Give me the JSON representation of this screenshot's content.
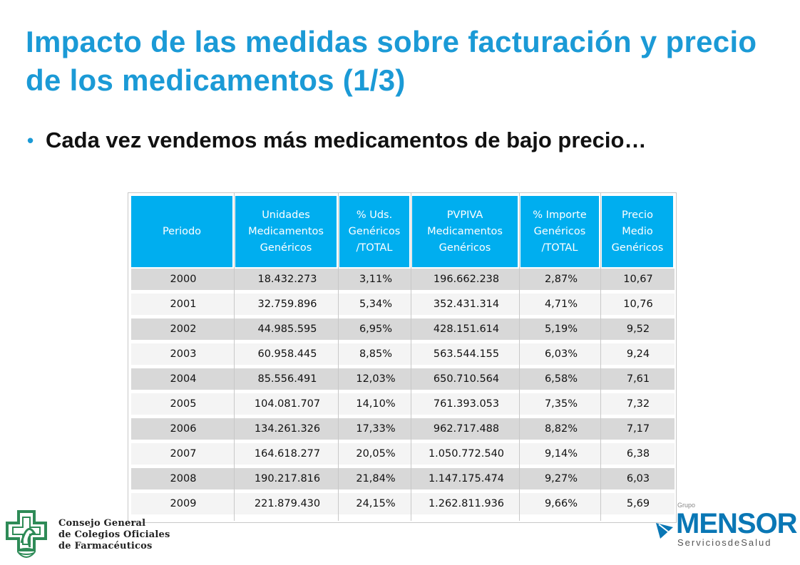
{
  "slide": {
    "title": "Impacto de las medidas sobre facturación y precio de los medicamentos (1/3)",
    "bullet": "Cada vez vendemos más medicamentos de bajo precio…"
  },
  "table": {
    "headers": [
      "Periodo",
      "Unidades\nMedicamentos\nGenéricos",
      "% Uds.\nGenéricos\n/TOTAL",
      "PVPIVA\nMedicamentos\nGenéricos",
      "% Importe\nGenéricos\n/TOTAL",
      "Precio\nMedio\nGenéricos"
    ],
    "rows": [
      [
        "2000",
        "18.432.273",
        "3,11%",
        "196.662.238",
        "2,87%",
        "10,67"
      ],
      [
        "2001",
        "32.759.896",
        "5,34%",
        "352.431.314",
        "4,71%",
        "10,76"
      ],
      [
        "2002",
        "44.985.595",
        "6,95%",
        "428.151.614",
        "5,19%",
        "9,52"
      ],
      [
        "2003",
        "60.958.445",
        "8,85%",
        "563.544.155",
        "6,03%",
        "9,24"
      ],
      [
        "2004",
        "85.556.491",
        "12,03%",
        "650.710.564",
        "6,58%",
        "7,61"
      ],
      [
        "2005",
        "104.081.707",
        "14,10%",
        "761.393.053",
        "7,35%",
        "7,32"
      ],
      [
        "2006",
        "134.261.326",
        "17,33%",
        "962.717.488",
        "8,82%",
        "7,17"
      ],
      [
        "2007",
        "164.618.277",
        "20,05%",
        "1.050.772.540",
        "9,14%",
        "6,38"
      ],
      [
        "2008",
        "190.217.816",
        "21,84%",
        "1.147.175.474",
        "9,27%",
        "6,03"
      ],
      [
        "2009",
        "221.879.430",
        "24,15%",
        "1.262.811.936",
        "9,66%",
        "5,69"
      ]
    ]
  },
  "logos": {
    "left_lines": [
      "Consejo General",
      "de Colegios Oficiales",
      "de Farmacéuticos"
    ],
    "right_group": "Grupo",
    "right_name": "MENSOR",
    "right_sub": "ServiciosdeSalud"
  },
  "colors": {
    "title": "#1b9ad6",
    "header_bg": "#00aeef",
    "row_shade": "#d8d8d8",
    "logo_green": "#2e8b57",
    "logo_blue": "#0a77b5"
  }
}
